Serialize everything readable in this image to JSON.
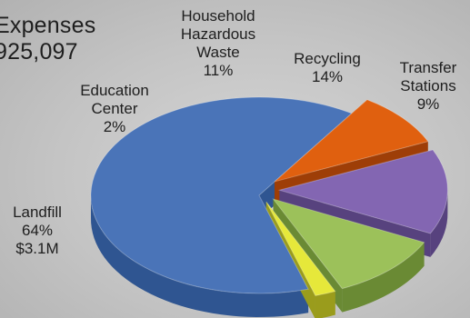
{
  "chart_data": {
    "type": "pie",
    "title": "Expenses",
    "subtitle": "925,097",
    "slices": [
      {
        "name": "Landfill",
        "percent": 64,
        "value_label": "$3.1M",
        "color": "#4a74b8",
        "side_color": "#2f5591"
      },
      {
        "name": "Transfer Stations",
        "percent": 9,
        "color": "#e0600f",
        "side_color": "#9e3e07"
      },
      {
        "name": "Recycling",
        "percent": 14,
        "color": "#8366b2",
        "side_color": "#57427e"
      },
      {
        "name": "Household Hazardous Waste",
        "percent": 11,
        "color": "#9cc15a",
        "side_color": "#6a8a34"
      },
      {
        "name": "Education Center",
        "percent": 2,
        "color": "#e6e83a",
        "side_color": "#9a9c1c"
      }
    ]
  },
  "labels": {
    "landfill": {
      "line1": "Landfill",
      "pct": "64%",
      "value": "$3.1M"
    },
    "education": {
      "line1": "Education",
      "line2": "Center",
      "pct": "2%"
    },
    "hhw": {
      "line1": "Household",
      "line2": "Hazardous",
      "line3": "Waste",
      "pct": "11%"
    },
    "recycling": {
      "line1": "Recycling",
      "pct": "14%"
    },
    "transfer": {
      "line1": "Transfer",
      "line2": "Stations",
      "pct": "9%"
    }
  }
}
